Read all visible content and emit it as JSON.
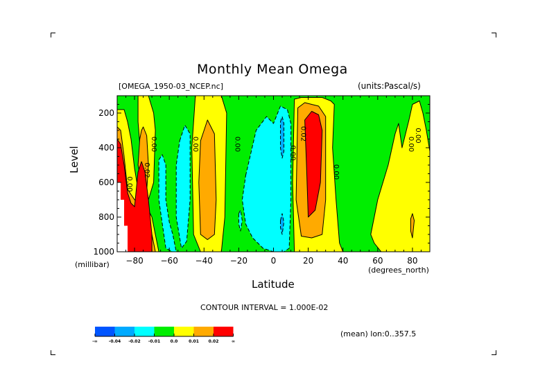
{
  "chart_data": {
    "type": "heatmap",
    "subtype": "filled-contour",
    "title": "Monthly Mean Omega",
    "dataset_label": "[OMEGA_1950-03_NCEP.nc]",
    "units_label": "(units:Pascal/s)",
    "xlabel": "Latitude",
    "x_units": "(degrees_north)",
    "ylabel": "Level",
    "y_units": "(millibar)",
    "xlim": [
      -90,
      90
    ],
    "ylim": [
      1000,
      100
    ],
    "y_inverted": true,
    "x_ticks": [
      -80,
      -60,
      -40,
      -20,
      0,
      20,
      40,
      60,
      80
    ],
    "y_ticks": [
      200,
      400,
      600,
      800,
      1000
    ],
    "contour_interval_text": "CONTOUR INTERVAL = 1.000E-02",
    "averaging_text": "(mean) lon:0..357.5",
    "contour_labels": [
      {
        "text": "0.00",
        "lat": -84,
        "level": 610
      },
      {
        "text": "0.02",
        "lat": -74,
        "level": 530
      },
      {
        "text": "0.00",
        "lat": -70,
        "level": 380
      },
      {
        "text": "0.00",
        "lat": -46,
        "level": 380
      },
      {
        "text": "0.00",
        "lat": -22,
        "level": 380
      },
      {
        "text": "0.00",
        "lat": 10,
        "level": 430
      },
      {
        "text": "0.02",
        "lat": 16,
        "level": 320
      },
      {
        "text": "0.00",
        "lat": 35,
        "level": 540
      },
      {
        "text": "0.00",
        "lat": 78,
        "level": 380
      },
      {
        "text": "0.00",
        "lat": 82,
        "level": 330
      }
    ],
    "legend": {
      "placement": "bottom-left",
      "levels": [
        "-∞",
        "-0.04",
        "-0.02",
        "-0.01",
        "0.0",
        "0.01",
        "0.02",
        "∞"
      ],
      "colors": [
        "#0055ff",
        "#00aaff",
        "#00ffff",
        "#00ee00",
        "#ffff00",
        "#ffaa00",
        "#ff0000"
      ]
    },
    "regions": [
      {
        "name": "green-background",
        "value_range": [
          -0.01,
          0.0
        ],
        "color": "#00ee00"
      },
      {
        "name": "yellow-band-sp",
        "value_range": [
          0.0,
          0.01
        ],
        "color": "#ffff00",
        "lat": [
          -90,
          -86,
          -84,
          -82,
          -80,
          -78,
          -74,
          -70,
          -68,
          -66,
          -66,
          -68,
          -72,
          -76,
          -80,
          -84,
          -86,
          -88,
          -90
        ],
        "level": [
          180,
          180,
          250,
          350,
          520,
          640,
          720,
          800,
          900,
          1000,
          1000,
          1000,
          1000,
          1000,
          1000,
          1000,
          1000,
          1000,
          1000
        ]
      },
      {
        "name": "yellow-col-minus75",
        "value_range": [
          0.0,
          0.01
        ],
        "color": "#ffff00",
        "lat": [
          -78,
          -76,
          -72,
          -69,
          -68,
          -69,
          -72,
          -76,
          -78
        ],
        "level": [
          100,
          100,
          100,
          200,
          300,
          600,
          700,
          500,
          250
        ]
      },
      {
        "name": "orange-sp",
        "value_range": [
          0.01,
          0.02
        ],
        "color": "#ffaa00",
        "lat": [
          -90,
          -88,
          -86,
          -84,
          -80,
          -76,
          -74,
          -72,
          -70,
          -68,
          -70,
          -74,
          -78,
          -80,
          -82,
          -86,
          -90
        ],
        "level": [
          280,
          300,
          450,
          640,
          700,
          720,
          760,
          800,
          900,
          1000,
          1000,
          1000,
          1000,
          1000,
          1000,
          1000,
          1000
        ]
      },
      {
        "name": "orange-col-minus75",
        "value_range": [
          0.01,
          0.02
        ],
        "color": "#ffaa00",
        "lat": [
          -76,
          -75,
          -73,
          -72,
          -73,
          -76,
          -78,
          -77
        ],
        "level": [
          300,
          280,
          330,
          500,
          650,
          600,
          500,
          350
        ]
      },
      {
        "name": "red-sp",
        "value_range": [
          0.02,
          1.0
        ],
        "color": "#ff0000",
        "lat": [
          -90,
          -88,
          -86,
          -84,
          -82,
          -80,
          -78,
          -76,
          -74,
          -72,
          -70,
          -70,
          -72,
          -76,
          -80,
          -84,
          -86,
          -90
        ],
        "level": [
          350,
          380,
          500,
          660,
          720,
          740,
          540,
          480,
          540,
          700,
          900,
          1000,
          1000,
          1000,
          1000,
          1000,
          1000,
          1000
        ]
      },
      {
        "name": "cyan-minus60",
        "value_range": [
          -0.02,
          -0.01
        ],
        "color": "#00ffff",
        "lat": [
          -66,
          -64,
          -62,
          -62,
          -60,
          -58,
          -56,
          -58,
          -62,
          -66
        ],
        "level": [
          470,
          440,
          500,
          700,
          830,
          900,
          1000,
          1000,
          980,
          700
        ]
      },
      {
        "name": "cyan-minus50",
        "value_range": [
          -0.02,
          -0.01
        ],
        "color": "#00ffff",
        "lat": [
          -54,
          -51,
          -48,
          -48,
          -50,
          -53,
          -56,
          -56
        ],
        "level": [
          360,
          270,
          320,
          700,
          940,
          980,
          800,
          500
        ]
      },
      {
        "name": "yellow-col-minus35",
        "value_range": [
          0.0,
          0.01
        ],
        "color": "#ffff00",
        "lat": [
          -45,
          -40,
          -30,
          -27,
          -28,
          -30,
          -35,
          -42,
          -46,
          -47
        ],
        "level": [
          100,
          100,
          100,
          200,
          800,
          1000,
          1000,
          1000,
          900,
          400
        ]
      },
      {
        "name": "orange-col-minus35",
        "value_range": [
          0.01,
          0.02
        ],
        "color": "#ffaa00",
        "lat": [
          -42,
          -38,
          -34,
          -33,
          -34,
          -38,
          -42,
          -43
        ],
        "level": [
          360,
          240,
          320,
          700,
          900,
          930,
          900,
          600
        ]
      },
      {
        "name": "cyan-equator",
        "value_range": [
          -0.02,
          -0.01
        ],
        "color": "#00ffff",
        "lat": [
          -16,
          -10,
          -4,
          0,
          4,
          8,
          10,
          10,
          9,
          6,
          0,
          -6,
          -12,
          -16,
          -18
        ],
        "level": [
          560,
          300,
          220,
          260,
          160,
          180,
          260,
          700,
          980,
          1000,
          1000,
          980,
          920,
          840,
          700
        ]
      },
      {
        "name": "blue-eq-upper",
        "value_range": [
          -0.04,
          -0.02
        ],
        "color": "#00aaff",
        "lat": [
          4,
          5,
          6,
          6,
          5,
          4
        ],
        "level": [
          250,
          220,
          260,
          420,
          460,
          400
        ]
      },
      {
        "name": "blue-eq-lower",
        "value_range": [
          -0.04,
          -0.02
        ],
        "color": "#00aaff",
        "lat": [
          4,
          5,
          6,
          5,
          4
        ],
        "level": [
          820,
          780,
          830,
          900,
          860
        ]
      },
      {
        "name": "cyan-minus18",
        "value_range": [
          -0.02,
          -0.01
        ],
        "color": "#00ffff",
        "lat": [
          -20,
          -19,
          -18,
          -19,
          -20
        ],
        "level": [
          780,
          760,
          820,
          880,
          840
        ]
      },
      {
        "name": "yellow-nh-subtropics",
        "value_range": [
          0.0,
          0.01
        ],
        "color": "#ffff00",
        "lat": [
          12,
          16,
          28,
          33,
          35,
          34,
          36,
          38,
          40,
          36,
          30,
          20,
          12,
          11
        ],
        "level": [
          120,
          110,
          110,
          130,
          150,
          400,
          700,
          950,
          1000,
          1000,
          1000,
          1000,
          1000,
          600
        ]
      },
      {
        "name": "orange-nh-subtropics",
        "value_range": [
          0.01,
          0.02
        ],
        "color": "#ffaa00",
        "lat": [
          14,
          18,
          26,
          30,
          30,
          28,
          22,
          16,
          13
        ],
        "level": [
          170,
          140,
          160,
          220,
          700,
          900,
          920,
          910,
          700
        ]
      },
      {
        "name": "red-nh-subtropics",
        "value_range": [
          0.02,
          1.0
        ],
        "color": "#ff0000",
        "lat": [
          18,
          22,
          26,
          28,
          27,
          24,
          20,
          19
        ],
        "level": [
          240,
          190,
          210,
          300,
          600,
          760,
          800,
          500
        ]
      },
      {
        "name": "yellow-nh-highlat",
        "value_range": [
          0.0,
          0.01
        ],
        "color": "#ffff00",
        "lat": [
          70,
          72,
          74,
          78,
          80,
          84,
          86,
          88,
          90,
          90,
          80,
          68,
          62,
          58,
          56,
          60,
          66
        ],
        "level": [
          320,
          260,
          400,
          240,
          150,
          130,
          200,
          300,
          420,
          1000,
          1000,
          1000,
          1000,
          950,
          900,
          700,
          500
        ]
      },
      {
        "name": "orange-nh-highlat",
        "value_range": [
          0.01,
          0.02
        ],
        "color": "#ffaa00",
        "lat": [
          79,
          80,
          81,
          80,
          79
        ],
        "level": [
          810,
          780,
          820,
          920,
          880
        ]
      }
    ]
  }
}
